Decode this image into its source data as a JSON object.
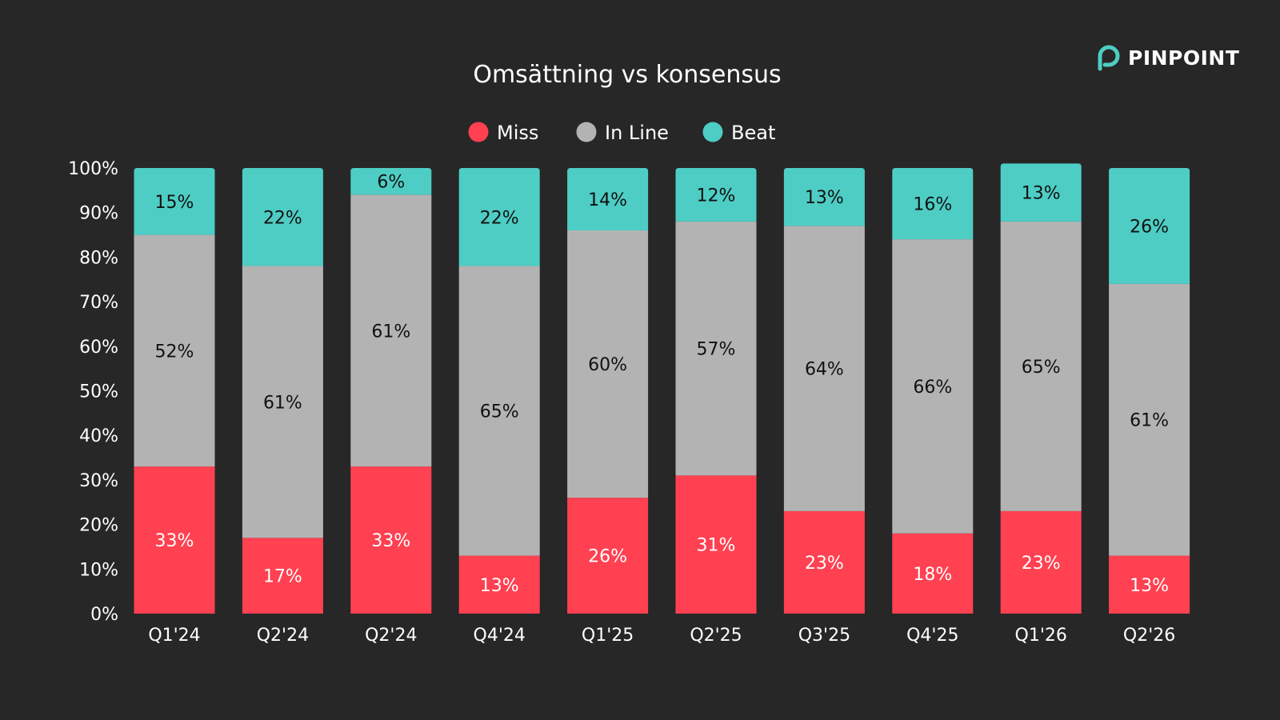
{
  "brand": {
    "name": "PINPOINT",
    "icon": "pinpoint-logo-icon",
    "icon_color": "#4ecdc4"
  },
  "chart_data": {
    "type": "bar",
    "stacked": true,
    "title": "Omsättning vs konsensus",
    "xlabel": "",
    "ylabel": "",
    "ylim": [
      0,
      100
    ],
    "yticks": [
      "0%",
      "10%",
      "20%",
      "30%",
      "40%",
      "50%",
      "60%",
      "70%",
      "80%",
      "90%",
      "100%"
    ],
    "grid": false,
    "legend_position": "top-center",
    "categories": [
      "Q1'24",
      "Q2'24",
      "Q2'24",
      "Q4'24",
      "Q1'25",
      "Q2'25",
      "Q3'25",
      "Q4'25",
      "Q1'26",
      "Q2'26"
    ],
    "series": [
      {
        "name": "Miss",
        "color": "#ff4151",
        "label_color": "#ffffff",
        "values": [
          33,
          17,
          33,
          13,
          26,
          31,
          23,
          18,
          23,
          13
        ],
        "labels": [
          "33%",
          "17%",
          "33%",
          "13%",
          "26%",
          "31%",
          "23%",
          "18%",
          "23%",
          "13%"
        ]
      },
      {
        "name": "In Line",
        "color": "#b3b3b3",
        "label_color": "#111111",
        "values": [
          52,
          61,
          61,
          65,
          60,
          57,
          64,
          66,
          65,
          61
        ],
        "labels": [
          "52%",
          "61%",
          "61%",
          "65%",
          "60%",
          "57%",
          "64%",
          "66%",
          "65%",
          "61%"
        ]
      },
      {
        "name": "Beat",
        "color": "#4ecdc4",
        "label_color": "#111111",
        "values": [
          15,
          22,
          6,
          22,
          14,
          12,
          13,
          16,
          13,
          26
        ],
        "labels": [
          "15%",
          "22%",
          "6%",
          "22%",
          "14%",
          "12%",
          "13%",
          "16%",
          "13%",
          "26%"
        ]
      }
    ]
  }
}
